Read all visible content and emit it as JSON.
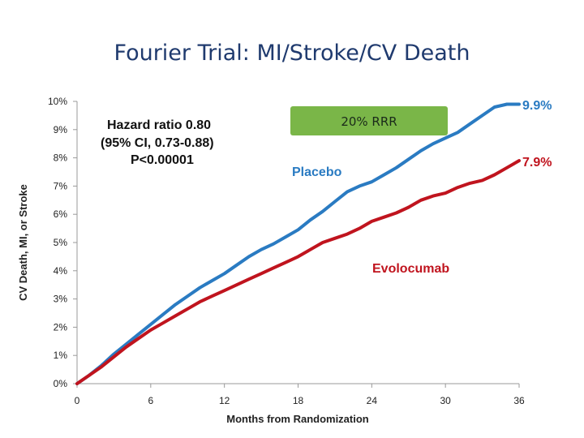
{
  "slide": {
    "title": "Fourier Trial: MI/Stroke/CV Death"
  },
  "colors": {
    "placebo": "#2a7bc2",
    "evolocumab": "#c0141e",
    "badge": "#7ab648",
    "title": "#1f3a6e"
  },
  "chart_data": {
    "type": "line",
    "title": "Fourier Trial: MI/Stroke/CV Death",
    "xlabel": "Months from Randomization",
    "ylabel": "CV Death, MI, or Stroke",
    "xlim": [
      0,
      36
    ],
    "ylim": [
      0,
      10
    ],
    "x_ticks": [
      "0",
      "6",
      "12",
      "18",
      "24",
      "30",
      "36"
    ],
    "y_ticks": [
      "0%",
      "1%",
      "2%",
      "3%",
      "4%",
      "5%",
      "6%",
      "7%",
      "8%",
      "9%",
      "10%"
    ],
    "series": [
      {
        "name": "Placebo",
        "end_label": "9.9%",
        "x": [
          0,
          1,
          2,
          3,
          4,
          5,
          6,
          7,
          8,
          9,
          10,
          11,
          12,
          13,
          14,
          15,
          16,
          17,
          18,
          19,
          20,
          21,
          22,
          23,
          24,
          25,
          26,
          27,
          28,
          29,
          30,
          31,
          32,
          33,
          34,
          35,
          36
        ],
        "values": [
          0,
          0.3,
          0.65,
          1.05,
          1.4,
          1.75,
          2.1,
          2.45,
          2.8,
          3.1,
          3.4,
          3.65,
          3.9,
          4.2,
          4.5,
          4.75,
          4.95,
          5.2,
          5.45,
          5.8,
          6.1,
          6.45,
          6.8,
          7.0,
          7.15,
          7.4,
          7.65,
          7.95,
          8.25,
          8.5,
          8.7,
          8.9,
          9.2,
          9.5,
          9.8,
          9.9,
          9.9
        ]
      },
      {
        "name": "Evolocumab",
        "end_label": "7.9%",
        "x": [
          0,
          1,
          2,
          3,
          4,
          5,
          6,
          7,
          8,
          9,
          10,
          11,
          12,
          13,
          14,
          15,
          16,
          17,
          18,
          19,
          20,
          21,
          22,
          23,
          24,
          25,
          26,
          27,
          28,
          29,
          30,
          31,
          32,
          33,
          34,
          35,
          36
        ],
        "values": [
          0,
          0.3,
          0.6,
          0.95,
          1.3,
          1.6,
          1.9,
          2.15,
          2.4,
          2.65,
          2.9,
          3.1,
          3.3,
          3.5,
          3.7,
          3.9,
          4.1,
          4.3,
          4.5,
          4.75,
          5.0,
          5.15,
          5.3,
          5.5,
          5.75,
          5.9,
          6.05,
          6.25,
          6.5,
          6.65,
          6.75,
          6.95,
          7.1,
          7.2,
          7.4,
          7.65,
          7.9
        ]
      }
    ],
    "annotations": {
      "hazard_ratio": "Hazard ratio 0.80",
      "ci": "(95% CI, 0.73-0.88)",
      "p_value": "P<0.00001",
      "rrr": "20% RRR"
    }
  }
}
